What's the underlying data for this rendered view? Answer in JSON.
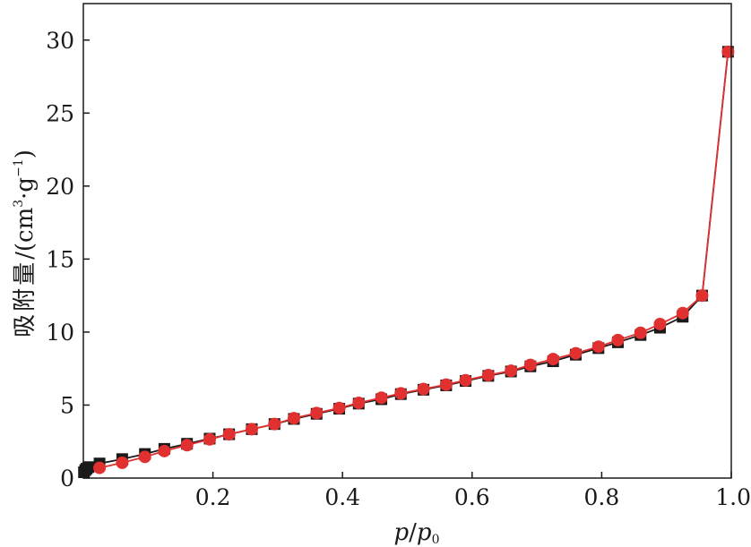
{
  "chart_data": {
    "type": "line",
    "xlabel": {
      "p": "p",
      "slash": "/",
      "p0": "p",
      "sub": "0"
    },
    "ylabel": {
      "cjk": "吸附量",
      "unit_open": "/(cm",
      "unit_sup3": "3",
      "unit_mid": "·g",
      "unit_supm1": "−1",
      "unit_close": ")"
    },
    "xlim": [
      0,
      1.0
    ],
    "ylim": [
      0,
      32.5
    ],
    "xticks": [
      {
        "value": 0.2,
        "label": "0.2"
      },
      {
        "value": 0.4,
        "label": "0.4"
      },
      {
        "value": 0.6,
        "label": "0.6"
      },
      {
        "value": 0.8,
        "label": "0.8"
      },
      {
        "value": 1.0,
        "label": "1.0"
      }
    ],
    "yticks": [
      {
        "value": 0,
        "label": "0"
      },
      {
        "value": 5,
        "label": "5"
      },
      {
        "value": 10,
        "label": "10"
      },
      {
        "value": 15,
        "label": "15"
      },
      {
        "value": 20,
        "label": "20"
      },
      {
        "value": 25,
        "label": "25"
      },
      {
        "value": 30,
        "label": "30"
      }
    ],
    "grid": false,
    "legend": "none",
    "series": [
      {
        "marker": "square",
        "color": "#1a1a1a",
        "x": [
          0.001,
          0.003,
          0.005,
          0.008,
          0.025,
          0.06,
          0.095,
          0.125,
          0.16,
          0.195,
          0.225,
          0.26,
          0.295,
          0.325,
          0.36,
          0.395,
          0.425,
          0.46,
          0.49,
          0.525,
          0.56,
          0.59,
          0.625,
          0.66,
          0.69,
          0.725,
          0.76,
          0.795,
          0.825,
          0.86,
          0.89,
          0.925,
          0.955,
          0.995
        ],
        "y": [
          0.4,
          0.55,
          0.65,
          0.75,
          1.0,
          1.3,
          1.65,
          2.0,
          2.35,
          2.7,
          3.0,
          3.35,
          3.7,
          4.05,
          4.4,
          4.75,
          5.1,
          5.4,
          5.75,
          6.05,
          6.35,
          6.65,
          7.0,
          7.3,
          7.65,
          8.0,
          8.45,
          8.9,
          9.3,
          9.8,
          10.3,
          11.05,
          12.5,
          29.2
        ]
      },
      {
        "marker": "circle",
        "color": "#e03030",
        "x": [
          0.025,
          0.06,
          0.095,
          0.125,
          0.16,
          0.195,
          0.225,
          0.26,
          0.295,
          0.325,
          0.36,
          0.395,
          0.425,
          0.46,
          0.49,
          0.525,
          0.56,
          0.59,
          0.625,
          0.66,
          0.69,
          0.725,
          0.76,
          0.795,
          0.825,
          0.86,
          0.89,
          0.925,
          0.955,
          0.995
        ],
        "y": [
          0.7,
          1.05,
          1.45,
          1.85,
          2.25,
          2.65,
          3.0,
          3.35,
          3.7,
          4.1,
          4.45,
          4.8,
          5.15,
          5.5,
          5.8,
          6.1,
          6.4,
          6.7,
          7.05,
          7.35,
          7.75,
          8.15,
          8.55,
          9.0,
          9.45,
          9.95,
          10.55,
          11.3,
          12.5,
          29.2
        ]
      }
    ]
  }
}
